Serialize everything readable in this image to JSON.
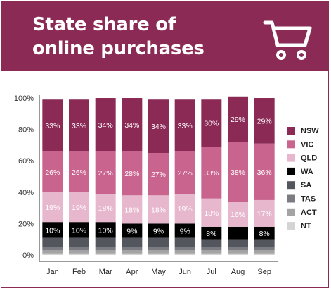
{
  "header": {
    "title": "State share of online purchases",
    "icon": "shopping-cart-icon",
    "background_color": "#8a2a55"
  },
  "chart_data": {
    "type": "bar",
    "stacked": true,
    "title": "State share of online purchases",
    "xlabel": "",
    "ylabel": "",
    "ylim": [
      0,
      100
    ],
    "yticks": [
      0,
      20,
      40,
      60,
      80,
      100
    ],
    "ytick_labels": [
      "0%",
      "20%",
      "40%",
      "60%",
      "80%",
      "100%"
    ],
    "categories": [
      "Jan",
      "Feb",
      "Mar",
      "Apr",
      "May",
      "Jun",
      "Jul",
      "Aug",
      "Sep"
    ],
    "legend_position": "right",
    "grid": false,
    "series": [
      {
        "name": "NT",
        "color": "#d4d4d4",
        "text_color": "#ffffff",
        "values": [
          1,
          1,
          1,
          1,
          1,
          1,
          1,
          1,
          1
        ],
        "labels": [
          "",
          "",
          "",
          "",
          "",
          "",
          "",
          "",
          ""
        ]
      },
      {
        "name": "ACT",
        "color": "#a4a4a4",
        "text_color": "#ffffff",
        "values": [
          2,
          2,
          2,
          2,
          2,
          2,
          2,
          2,
          2
        ],
        "labels": [
          "",
          "",
          "",
          "",
          "",
          "",
          "",
          "",
          ""
        ]
      },
      {
        "name": "TAS",
        "color": "#7b7c82",
        "text_color": "#ffffff",
        "values": [
          2,
          2,
          2,
          2,
          2,
          2,
          2,
          2,
          2
        ],
        "labels": [
          "",
          "",
          "",
          "",
          "",
          "",
          "",
          "",
          ""
        ]
      },
      {
        "name": "SA",
        "color": "#54565e",
        "text_color": "#ffffff",
        "values": [
          6,
          6,
          6,
          6,
          6,
          6,
          5,
          5,
          5
        ],
        "labels": [
          "",
          "",
          "",
          "",
          "",
          "",
          "",
          "",
          ""
        ]
      },
      {
        "name": "WA",
        "color": "#000000",
        "text_color": "#ffffff",
        "values": [
          10,
          10,
          10,
          9,
          9,
          9,
          8,
          8,
          8
        ],
        "labels": [
          "10%",
          "10%",
          "10%",
          "9%",
          "9%",
          "9%",
          "8%",
          "",
          "8%"
        ]
      },
      {
        "name": "QLD",
        "color": "#e7b8cd",
        "text_color": "#ffffff",
        "values": [
          19,
          19,
          18,
          18,
          18,
          19,
          18,
          16,
          17
        ],
        "labels": [
          "19%",
          "19%",
          "18%",
          "18%",
          "18%",
          "19%",
          "18%",
          "16%",
          "17%"
        ]
      },
      {
        "name": "VIC",
        "color": "#c9648f",
        "text_color": "#ffffff",
        "values": [
          26,
          26,
          27,
          28,
          27,
          27,
          33,
          38,
          36
        ],
        "labels": [
          "26%",
          "26%",
          "27%",
          "28%",
          "27%",
          "27%",
          "33%",
          "38%",
          "36%"
        ]
      },
      {
        "name": "NSW",
        "color": "#8a2a55",
        "text_color": "#ffffff",
        "values": [
          33,
          33,
          34,
          34,
          34,
          33,
          30,
          29,
          29
        ],
        "labels": [
          "33%",
          "33%",
          "34%",
          "34%",
          "34%",
          "33%",
          "30%",
          "29%",
          "29%"
        ]
      }
    ],
    "legend": [
      "NSW",
      "VIC",
      "QLD",
      "WA",
      "SA",
      "TAS",
      "ACT",
      "NT"
    ]
  }
}
